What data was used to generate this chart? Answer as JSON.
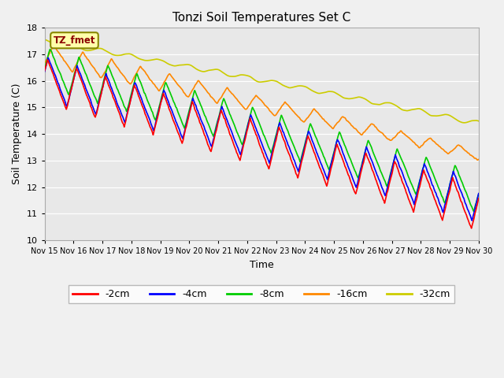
{
  "title": "Tonzi Soil Temperatures Set C",
  "xlabel": "Time",
  "ylabel": "Soil Temperature (C)",
  "ylim": [
    10.0,
    18.0
  ],
  "xlim": [
    0,
    360
  ],
  "yticks": [
    10.0,
    11.0,
    12.0,
    13.0,
    14.0,
    15.0,
    16.0,
    17.0,
    18.0
  ],
  "xtick_positions": [
    0,
    24,
    48,
    72,
    96,
    120,
    144,
    168,
    192,
    216,
    240,
    264,
    288,
    312,
    336,
    360
  ],
  "xtick_labels": [
    "Nov 15",
    "Nov 16",
    "Nov 17",
    "Nov 18",
    "Nov 19",
    "Nov 20",
    "Nov 21",
    "Nov 22",
    "Nov 23",
    "Nov 24",
    "Nov 25",
    "Nov 26",
    "Nov 27",
    "Nov 28",
    "Nov 29",
    "Nov 30"
  ],
  "colors": {
    "-2cm": "#ff0000",
    "-4cm": "#0000ff",
    "-8cm": "#00cc00",
    "-16cm": "#ff8800",
    "-32cm": "#cccc00"
  },
  "legend_label": "TZ_fmet",
  "fig_bg": "#f0f0f0",
  "plot_bg": "#e8e8e8"
}
